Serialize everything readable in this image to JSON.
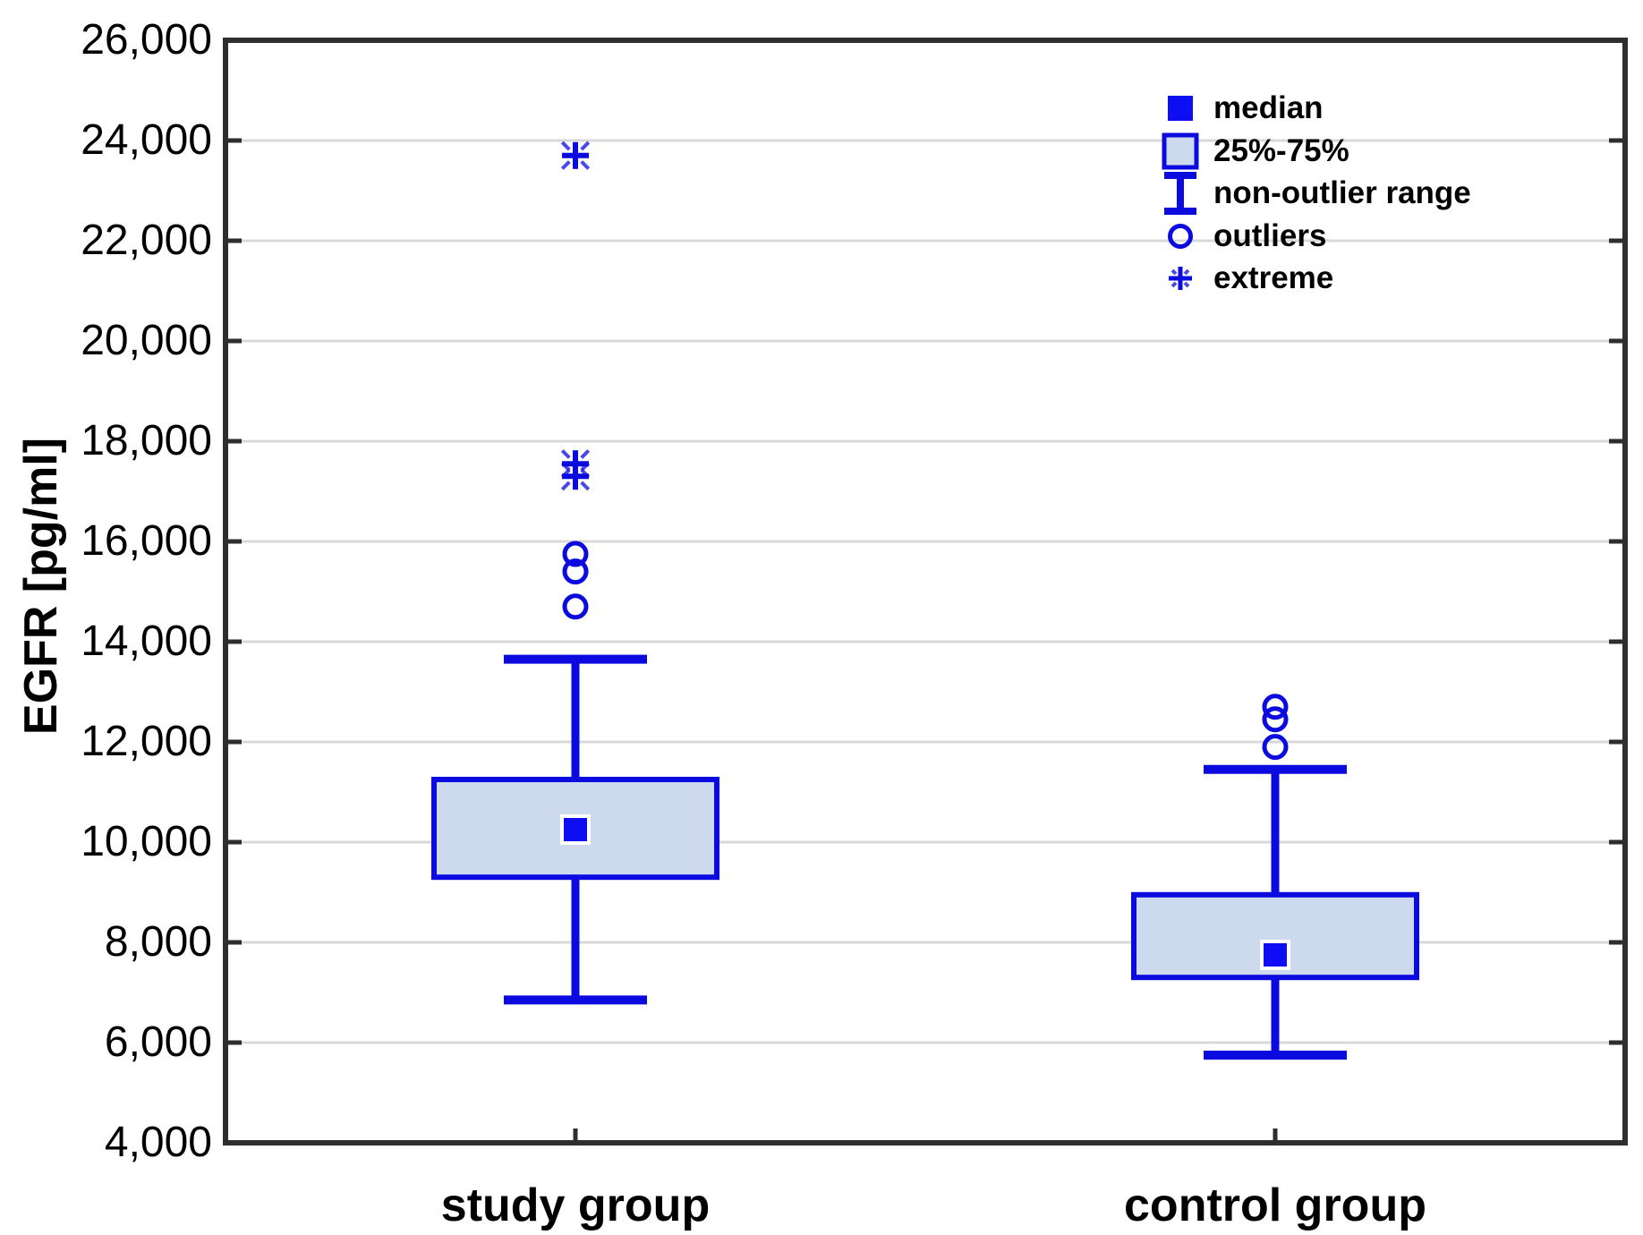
{
  "chart_data": {
    "type": "boxplot",
    "title": "",
    "ylabel": "EGFR [pg/ml]",
    "xlabel": "",
    "ylim": [
      4000,
      26000
    ],
    "ytick_step": 2000,
    "grid": "horizontal-major",
    "legend_position": "top-right-inside",
    "yticks": [
      {
        "value": 4000,
        "label": "4,000"
      },
      {
        "value": 6000,
        "label": "6,000"
      },
      {
        "value": 8000,
        "label": "8,000"
      },
      {
        "value": 10000,
        "label": "10,000"
      },
      {
        "value": 12000,
        "label": "12,000"
      },
      {
        "value": 14000,
        "label": "14,000"
      },
      {
        "value": 16000,
        "label": "16,000"
      },
      {
        "value": 18000,
        "label": "18,000"
      },
      {
        "value": 20000,
        "label": "20,000"
      },
      {
        "value": 22000,
        "label": "22,000"
      },
      {
        "value": 24000,
        "label": "24,000"
      },
      {
        "value": 26000,
        "label": "26,000"
      }
    ],
    "categories": [
      "study group",
      "control group"
    ],
    "series": [
      {
        "name": "study group",
        "median": 10250,
        "q1": 9300,
        "q3": 11250,
        "whisker_low": 6850,
        "whisker_high": 13650,
        "outliers": [
          14700,
          15400,
          15750
        ],
        "extremes": [
          17300,
          17550,
          23700
        ]
      },
      {
        "name": "control group",
        "median": 7750,
        "q1": 7300,
        "q3": 8950,
        "whisker_low": 5750,
        "whisker_high": 11450,
        "outliers": [
          11900,
          12450,
          12700
        ],
        "extremes": []
      }
    ],
    "legend": [
      {
        "symbol": "median-square",
        "label": "median"
      },
      {
        "symbol": "box-25-75",
        "label": "25%-75%"
      },
      {
        "symbol": "whisker-ibeam",
        "label": "non-outlier range"
      },
      {
        "symbol": "outlier-circle",
        "label": "outliers"
      },
      {
        "symbol": "extreme-asterisk",
        "label": "extreme"
      }
    ],
    "colors": {
      "line_blue": "#0B0BE0",
      "median_blue": "#0E0EF2",
      "box_fill": "#CDD9EC",
      "grid": "#D8D8D8",
      "axis": "#2E2E2E",
      "text": "#000000",
      "background": "#FFFFFF"
    }
  }
}
